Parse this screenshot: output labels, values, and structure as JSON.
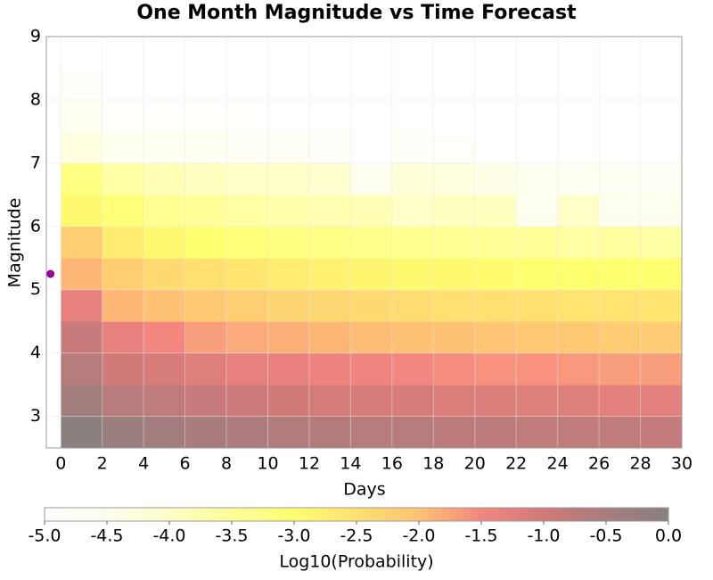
{
  "chart_data": {
    "type": "heatmap",
    "title": "One Month Magnitude vs Time Forecast",
    "x_label": "Days",
    "y_label": "Magnitude",
    "xlim": [
      -0.7,
      30
    ],
    "ylim": [
      2.5,
      9
    ],
    "xticks": [
      0,
      2,
      4,
      6,
      8,
      10,
      12,
      14,
      16,
      18,
      20,
      22,
      24,
      26,
      28,
      30
    ],
    "yticks": [
      3,
      4,
      5,
      6,
      7,
      8,
      9
    ],
    "grid": true,
    "x_edges": [
      0,
      2,
      4,
      6,
      8,
      10,
      12,
      14,
      16,
      18,
      20,
      22,
      24,
      26,
      28,
      30
    ],
    "y_edges": [
      2.5,
      3.0,
      3.5,
      4.0,
      4.5,
      5.0,
      5.5,
      6.0,
      6.5,
      7.0,
      7.5,
      8.0,
      8.5,
      9.0
    ],
    "z": [
      [
        -0.05,
        -0.3,
        -0.4,
        -0.5,
        -0.55,
        -0.6,
        -0.65,
        -0.7,
        -0.7,
        -0.75,
        -0.75,
        -0.8,
        -0.8,
        -0.8,
        -0.85
      ],
      [
        -0.4,
        -0.7,
        -0.8,
        -0.9,
        -0.95,
        -1.0,
        -1.05,
        -1.1,
        -1.1,
        -1.15,
        -1.15,
        -1.2,
        -1.2,
        -1.25,
        -1.25
      ],
      [
        -0.7,
        -1.0,
        -1.1,
        -1.2,
        -1.3,
        -1.35,
        -1.4,
        -1.45,
        -1.5,
        -1.55,
        -1.6,
        -1.6,
        -1.65,
        -1.7,
        -1.7
      ],
      [
        -0.9,
        -1.3,
        -1.5,
        -1.7,
        -1.8,
        -1.85,
        -1.9,
        -1.95,
        -2.0,
        -2.0,
        -2.05,
        -2.1,
        -2.1,
        -2.15,
        -2.15
      ],
      [
        -1.3,
        -1.9,
        -2.0,
        -2.1,
        -2.2,
        -2.3,
        -2.35,
        -2.4,
        -2.45,
        -2.5,
        -2.5,
        -2.5,
        -2.55,
        -2.55,
        -2.6
      ],
      [
        -1.9,
        -2.2,
        -2.4,
        -2.5,
        -2.6,
        -2.7,
        -2.8,
        -2.85,
        -2.9,
        -2.9,
        -2.95,
        -3.0,
        -3.0,
        -3.0,
        -3.0
      ],
      [
        -2.2,
        -2.7,
        -2.9,
        -3.0,
        -3.1,
        -3.2,
        -3.25,
        -3.3,
        -3.35,
        -3.4,
        -3.45,
        -3.5,
        -3.6,
        -3.55,
        -3.6
      ],
      [
        -2.9,
        -3.1,
        -3.4,
        -3.5,
        -3.6,
        -3.7,
        -3.75,
        -3.8,
        -4.0,
        -3.9,
        -3.9,
        -4.5,
        -4.0,
        -4.5,
        -4.5
      ],
      [
        -3.2,
        -3.6,
        -3.8,
        -3.9,
        -4.0,
        -4.0,
        -4.1,
        -4.5,
        -4.2,
        -4.3,
        -4.4,
        -4.5,
        -4.6,
        -4.6,
        -4.7
      ],
      [
        -4.3,
        -4.5,
        -4.6,
        -4.6,
        -4.7,
        -4.7,
        -4.8,
        -5.0,
        -4.8,
        -4.9,
        -5.0,
        -5.0,
        -5.0,
        -5.0,
        -5.0
      ],
      [
        -4.6,
        -4.9,
        -4.9,
        -4.9,
        -4.9,
        -5.0,
        -5.0,
        -5.0,
        -5.0,
        -5.0,
        -5.0,
        -5.0,
        -5.0,
        -5.0,
        -5.0
      ],
      [
        -4.8,
        -5.0,
        -5.0,
        -5.0,
        -5.0,
        -5.0,
        -5.0,
        -5.0,
        -5.0,
        -5.0,
        -5.0,
        -5.0,
        -5.0,
        -5.0,
        -5.0
      ],
      [
        -5.0,
        -5.0,
        -5.0,
        -5.0,
        -5.0,
        -5.0,
        -5.0,
        -5.0,
        -5.0,
        -5.0,
        -5.0,
        -5.0,
        -5.0,
        -5.0,
        -5.0
      ]
    ],
    "markers": {
      "x": [
        -0.5
      ],
      "y": [
        5.25
      ],
      "color": "#990099"
    },
    "colorbar": {
      "label": "Log10(Probability)",
      "lim": [
        -5,
        0
      ],
      "ticks": [
        {
          "value": -5,
          "label": "-5.0"
        },
        {
          "value": -4.5,
          "label": "-4.5"
        },
        {
          "value": -4,
          "label": "-4.0"
        },
        {
          "value": -3.5,
          "label": "-3.5"
        },
        {
          "value": -3,
          "label": "-3.0"
        },
        {
          "value": -2.5,
          "label": "-2.5"
        },
        {
          "value": -2,
          "label": "-2.0"
        },
        {
          "value": -1.5,
          "label": "-1.5"
        },
        {
          "value": -1,
          "label": "-1.0"
        },
        {
          "value": -0.5,
          "label": "-0.5"
        },
        {
          "value": 0,
          "label": "0.0"
        }
      ],
      "colors": [
        "#ffffff",
        "#fffff0",
        "#ffffc8",
        "#ffff9a",
        "#ffff70",
        "#ffe070",
        "#ffc274",
        "#f48680",
        "#d07a7a",
        "#a87c7c",
        "#888080"
      ]
    }
  }
}
